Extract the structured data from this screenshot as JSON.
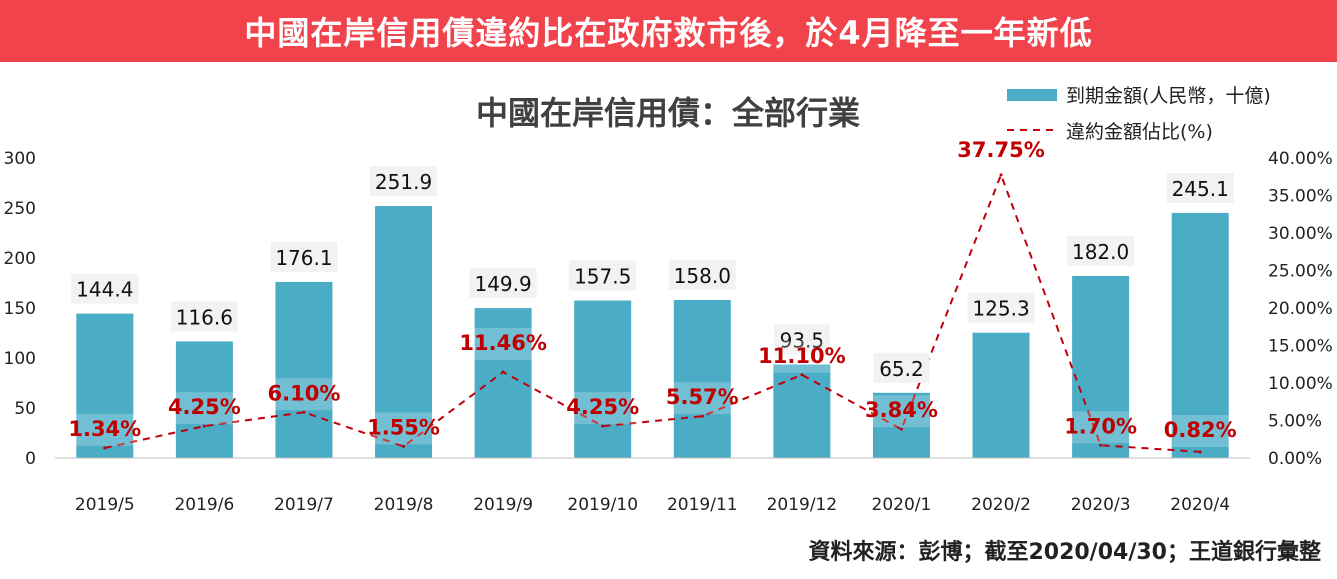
{
  "banner": {
    "title": "中國在岸信用債違約比在政府救市後，於4月降至一年新低"
  },
  "source": "資料來源：彭博；截至2020/04/30；王道銀行彙整",
  "colors": {
    "banner": "#f0434b",
    "bar": "#4bacc6",
    "line": "#c0000a",
    "label_red": "#c00000"
  },
  "chart_data": {
    "type": "bar",
    "title": "中國在岸信用債：全部行業",
    "categories": [
      "2019/5",
      "2019/6",
      "2019/7",
      "2019/8",
      "2019/9",
      "2019/10",
      "2019/11",
      "2019/12",
      "2020/1",
      "2020/2",
      "2020/3",
      "2020/4"
    ],
    "series": [
      {
        "name": "到期金額(人民幣，十億)",
        "type": "bar",
        "axis": "left",
        "values": [
          144.4,
          116.6,
          176.1,
          251.9,
          149.9,
          157.5,
          158.0,
          93.5,
          65.2,
          125.3,
          182.0,
          245.1
        ],
        "labels": [
          "144.4",
          "116.6",
          "176.1",
          "251.9",
          "149.9",
          "157.5",
          "158.0",
          "93.5",
          "65.2",
          "125.3",
          "182.0",
          "245.1"
        ]
      },
      {
        "name": "違約金額佔比(%)",
        "type": "line",
        "style": "dashed",
        "axis": "right",
        "values": [
          1.34,
          4.25,
          6.1,
          1.55,
          11.46,
          4.25,
          5.57,
          11.1,
          3.84,
          37.75,
          1.7,
          0.82
        ],
        "labels": [
          "1.34%",
          "4.25%",
          "6.10%",
          "1.55%",
          "11.46%",
          "4.25%",
          "5.57%",
          "11.10%",
          "3.84%",
          "37.75%",
          "1.70%",
          "0.82%"
        ]
      }
    ],
    "y_left": {
      "ylim": [
        0,
        300
      ],
      "ticks": [
        "0",
        "50",
        "100",
        "150",
        "200",
        "250",
        "300"
      ]
    },
    "y_right": {
      "ylim": [
        0,
        40
      ],
      "ticks": [
        "0.00%",
        "5.00%",
        "10.00%",
        "15.00%",
        "20.00%",
        "25.00%",
        "30.00%",
        "35.00%",
        "40.00%"
      ]
    },
    "legend": "top-right",
    "grid": false
  }
}
